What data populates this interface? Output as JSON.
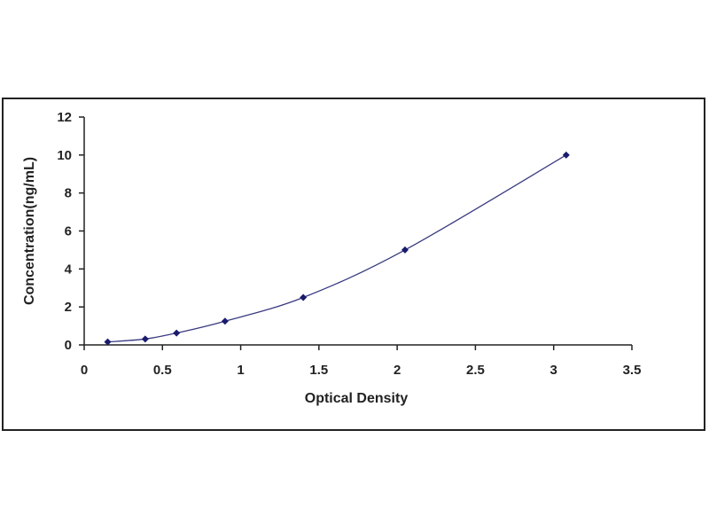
{
  "chart_data": {
    "type": "scatter",
    "title": "",
    "xlabel": "Optical Density",
    "ylabel": "Concentration(ng/mL)",
    "xlim": [
      0,
      3.5
    ],
    "ylim": [
      0,
      12
    ],
    "x_ticks": [
      "0",
      "0.5",
      "1",
      "1.5",
      "2",
      "2.5",
      "3",
      "3.5"
    ],
    "y_ticks": [
      "0",
      "2",
      "4",
      "6",
      "8",
      "10",
      "12"
    ],
    "x_tick_values": [
      0,
      0.5,
      1,
      1.5,
      2,
      2.5,
      3,
      3.5
    ],
    "y_tick_values": [
      0,
      2,
      4,
      6,
      8,
      10,
      12
    ],
    "grid": false,
    "legend": "none",
    "series": [
      {
        "x": [
          0.15,
          0.39,
          0.59,
          0.9,
          1.4,
          2.05,
          3.08
        ],
        "y": [
          0.156,
          0.312,
          0.625,
          1.25,
          2.5,
          5,
          10
        ],
        "marker_color": "#1a1a6e",
        "line_color": "#3a3a80",
        "fit": "smooth-curve"
      }
    ]
  }
}
